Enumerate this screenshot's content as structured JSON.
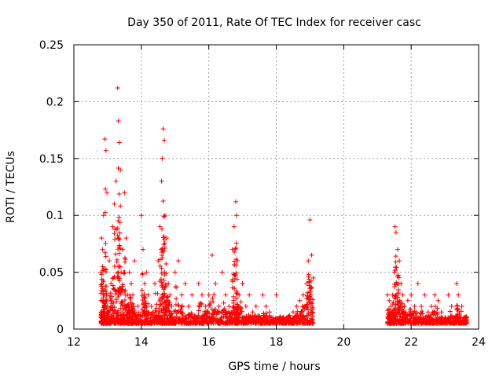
{
  "chart_data": {
    "type": "scatter",
    "title": "Day 350 of 2011, Rate Of TEC Index for receiver casc",
    "xlabel": "GPS time / hours",
    "ylabel": "ROTI / TECUs",
    "xlim": [
      12,
      24
    ],
    "ylim": [
      0,
      0.25
    ],
    "xticks": [
      "12",
      "14",
      "16",
      "18",
      "20",
      "22",
      "24"
    ],
    "yticks": [
      "0",
      "0.05",
      "0.1",
      "0.15",
      "0.2",
      "0.25"
    ],
    "grid": true,
    "marker": "+",
    "color": "#ff0000",
    "series": [
      {
        "name": "casc",
        "x": [
          12.8,
          12.82,
          12.85,
          12.88,
          12.9,
          12.92,
          12.95,
          12.98,
          13.0,
          13.05,
          13.1,
          13.15,
          13.2,
          13.25,
          13.3,
          13.32,
          13.35,
          13.38,
          13.4,
          13.45,
          13.5,
          13.55,
          13.6,
          13.65,
          13.7,
          13.75,
          13.8,
          13.9,
          14.0,
          14.05,
          14.1,
          14.15,
          14.2,
          14.3,
          14.4,
          14.5,
          14.55,
          14.6,
          14.62,
          14.65,
          14.68,
          14.7,
          14.75,
          14.8,
          14.85,
          14.9,
          15.0,
          15.1,
          15.2,
          15.3,
          15.4,
          15.5,
          15.6,
          15.7,
          15.8,
          15.9,
          16.0,
          16.1,
          16.2,
          16.3,
          16.4,
          16.5,
          16.6,
          16.7,
          16.75,
          16.8,
          16.82,
          16.85,
          16.9,
          17.0,
          17.1,
          17.2,
          17.3,
          17.4,
          17.5,
          17.6,
          17.7,
          17.8,
          17.9,
          18.0,
          18.1,
          18.2,
          18.3,
          18.4,
          18.5,
          18.6,
          18.7,
          18.8,
          18.9,
          18.95,
          19.0,
          19.05,
          19.1,
          21.3,
          21.35,
          21.4,
          21.45,
          21.5,
          21.52,
          21.55,
          21.6,
          21.65,
          21.7,
          21.75,
          21.8,
          21.9,
          22.0,
          22.1,
          22.2,
          22.3,
          22.4,
          22.5,
          22.6,
          22.7,
          22.8,
          22.9,
          23.0,
          23.1,
          23.2,
          23.3,
          23.35,
          23.4,
          23.5,
          23.6,
          23.65
        ],
        "y": [
          0.05,
          0.08,
          0.07,
          0.1,
          0.03,
          0.167,
          0.157,
          0.12,
          0.02,
          0.06,
          0.04,
          0.09,
          0.11,
          0.13,
          0.212,
          0.183,
          0.164,
          0.14,
          0.05,
          0.07,
          0.12,
          0.08,
          0.03,
          0.05,
          0.04,
          0.03,
          0.06,
          0.02,
          0.1,
          0.07,
          0.04,
          0.05,
          0.03,
          0.02,
          0.04,
          0.06,
          0.09,
          0.13,
          0.15,
          0.176,
          0.166,
          0.1,
          0.08,
          0.04,
          0.03,
          0.02,
          0.05,
          0.06,
          0.03,
          0.04,
          0.02,
          0.03,
          0.01,
          0.04,
          0.03,
          0.02,
          0.03,
          0.065,
          0.04,
          0.02,
          0.05,
          0.03,
          0.02,
          0.07,
          0.09,
          0.112,
          0.1,
          0.06,
          0.03,
          0.04,
          0.02,
          0.03,
          0.015,
          0.02,
          0.01,
          0.03,
          0.02,
          0.015,
          0.01,
          0.03,
          0.01,
          0.008,
          0.01,
          0.012,
          0.015,
          0.02,
          0.025,
          0.03,
          0.04,
          0.06,
          0.096,
          0.065,
          0.045,
          0.03,
          0.025,
          0.02,
          0.03,
          0.05,
          0.09,
          0.085,
          0.07,
          0.06,
          0.04,
          0.03,
          0.02,
          0.025,
          0.03,
          0.02,
          0.04,
          0.02,
          0.03,
          0.015,
          0.02,
          0.03,
          0.025,
          0.015,
          0.01,
          0.03,
          0.02,
          0.01,
          0.04,
          0.03,
          0.02,
          0.01,
          0.008
        ],
        "y_floor": [
          0.005,
          0.005,
          0.005,
          0.005,
          0.005,
          0.005,
          0.005,
          0.005,
          0.005,
          0.005,
          0.005,
          0.005,
          0.005,
          0.005,
          0.005,
          0.005,
          0.005,
          0.005,
          0.005,
          0.005,
          0.005,
          0.005,
          0.005,
          0.005,
          0.005,
          0.005,
          0.005,
          0.005,
          0.005,
          0.005,
          0.005,
          0.005,
          0.005,
          0.005,
          0.005,
          0.005,
          0.005,
          0.005,
          0.005,
          0.005,
          0.005,
          0.005,
          0.005,
          0.005,
          0.005,
          0.005,
          0.005,
          0.005,
          0.005,
          0.005,
          0.005,
          0.005,
          0.005,
          0.005,
          0.005,
          0.005,
          0.005,
          0.005,
          0.005,
          0.005,
          0.005,
          0.005,
          0.005,
          0.005,
          0.005,
          0.005,
          0.005,
          0.005,
          0.005,
          0.005,
          0.005,
          0.005,
          0.005,
          0.005,
          0.005,
          0.005,
          0.005,
          0.005,
          0.005,
          0.005,
          0.005,
          0.005,
          0.005,
          0.005,
          0.005,
          0.005,
          0.005,
          0.005,
          0.005,
          0.005,
          0.005,
          0.005,
          0.005,
          0.005,
          0.005,
          0.005,
          0.005,
          0.005,
          0.005,
          0.005,
          0.005,
          0.005,
          0.005,
          0.005,
          0.005,
          0.005,
          0.005,
          0.005,
          0.005,
          0.005,
          0.005,
          0.005,
          0.005,
          0.005,
          0.005,
          0.005,
          0.005,
          0.005,
          0.005,
          0.005,
          0.005,
          0.005,
          0.005,
          0.005,
          0.005
        ]
      }
    ]
  }
}
